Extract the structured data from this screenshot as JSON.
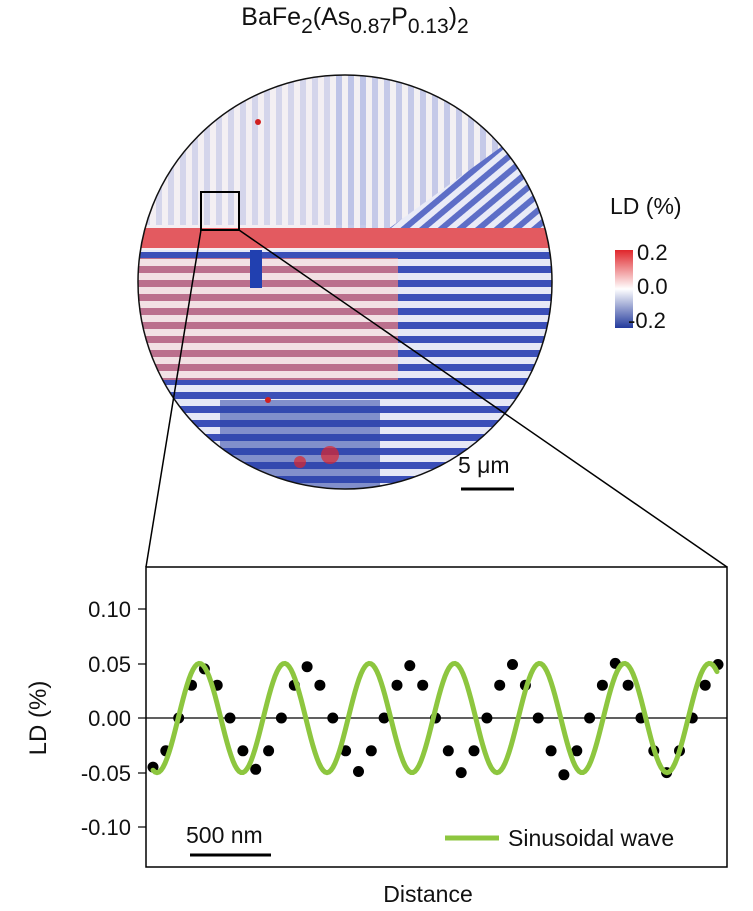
{
  "map": {
    "title": {
      "parts": [
        {
          "text": "BaFe",
          "sub": false
        },
        {
          "text": "2",
          "sub": true
        },
        {
          "text": "(As",
          "sub": false
        },
        {
          "text": "0.87",
          "sub": true
        },
        {
          "text": "P",
          "sub": false
        },
        {
          "text": "0.13",
          "sub": true
        },
        {
          "text": ")",
          "sub": false
        },
        {
          "text": "2",
          "sub": true
        }
      ]
    },
    "scale_bar_label": "5 μm",
    "colorbar": {
      "title": "LD (%)",
      "ticks": [
        "0.2",
        "0.0",
        "-0.2"
      ],
      "colors": {
        "high": "#e0262b",
        "mid": "#ffffff",
        "low": "#233a9c"
      }
    }
  },
  "chart_data": {
    "type": "line",
    "xlabel": "Distance",
    "ylabel": "LD (%)",
    "yticks": [
      "0.10",
      "0.05",
      "0.00",
      "-0.05",
      "-0.10"
    ],
    "ylim": [
      -0.14,
      0.14
    ],
    "zero_line": true,
    "scale_bar_label": "500 nm",
    "legend": {
      "entries": [
        {
          "label": "Sinusoidal wave",
          "color": "#8dc63f"
        }
      ],
      "position": "bottom-right"
    },
    "series": [
      {
        "name": "Sinusoidal wave",
        "kind": "line",
        "color": "#8dc63f",
        "amplitude": 0.05,
        "periods": 6.6,
        "peak_x": [
          200,
          285,
          371,
          457,
          543,
          630
        ],
        "trough_x": [
          157,
          243,
          329,
          413,
          499,
          587,
          674
        ],
        "end_x": 718
      },
      {
        "kind": "points",
        "color": "#000000",
        "values": [
          -0.045,
          -0.03,
          0.0,
          0.03,
          0.045,
          0.03,
          0.0,
          -0.03,
          -0.047,
          -0.03,
          0.0,
          0.03,
          0.047,
          0.03,
          0.0,
          -0.03,
          -0.049,
          -0.03,
          0.0,
          0.03,
          0.048,
          0.03,
          0.0,
          -0.03,
          -0.05,
          -0.03,
          0.0,
          0.03,
          0.049,
          0.03,
          0.0,
          -0.03,
          -0.052,
          -0.03,
          0.0,
          0.03,
          0.05,
          0.03,
          0.0,
          -0.03,
          -0.05,
          -0.03,
          0.0,
          0.03,
          0.049
        ]
      }
    ]
  }
}
